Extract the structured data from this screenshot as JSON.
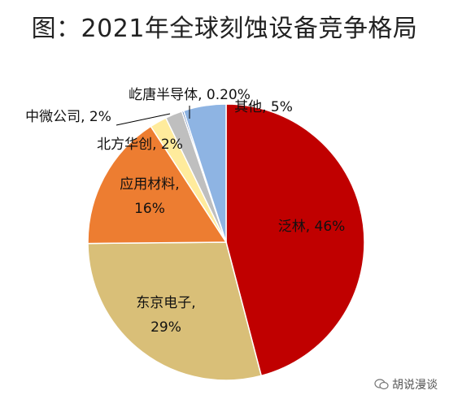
{
  "title": "图：2021年全球刻蚀设备竞争格局",
  "watermark": "胡说漫谈",
  "chart_data": {
    "type": "pie",
    "title": "图：2021年全球刻蚀设备竞争格局",
    "start": "12 o'clock",
    "direction": "clockwise",
    "slices": [
      {
        "name": "泛林",
        "value": 46,
        "color": "#c00000",
        "label_lines": [
          "泛林, 46%"
        ]
      },
      {
        "name": "东京电子",
        "value": 29,
        "color": "#d9bf78",
        "label_lines": [
          "东京电子,",
          "29%"
        ]
      },
      {
        "name": "应用材料",
        "value": 16,
        "color": "#ed7d31",
        "label_lines": [
          "应用材料,",
          "16%"
        ]
      },
      {
        "name": "北方华创",
        "value": 2,
        "color": "#ffeb9c",
        "label_lines": [
          "北方华创, 2%"
        ]
      },
      {
        "name": "中微公司",
        "value": 2,
        "color": "#bfbfbf",
        "label_lines": [
          "中微公司, 2%"
        ]
      },
      {
        "name": "屹唐半导体",
        "value": 0.2,
        "color": "#1f4e9c",
        "label_lines": [
          "屹唐半导体, 0.20%"
        ]
      },
      {
        "name": "其他",
        "value": 5,
        "color": "#8eb4e3",
        "label_lines": [
          "其他, 5%"
        ]
      }
    ]
  }
}
